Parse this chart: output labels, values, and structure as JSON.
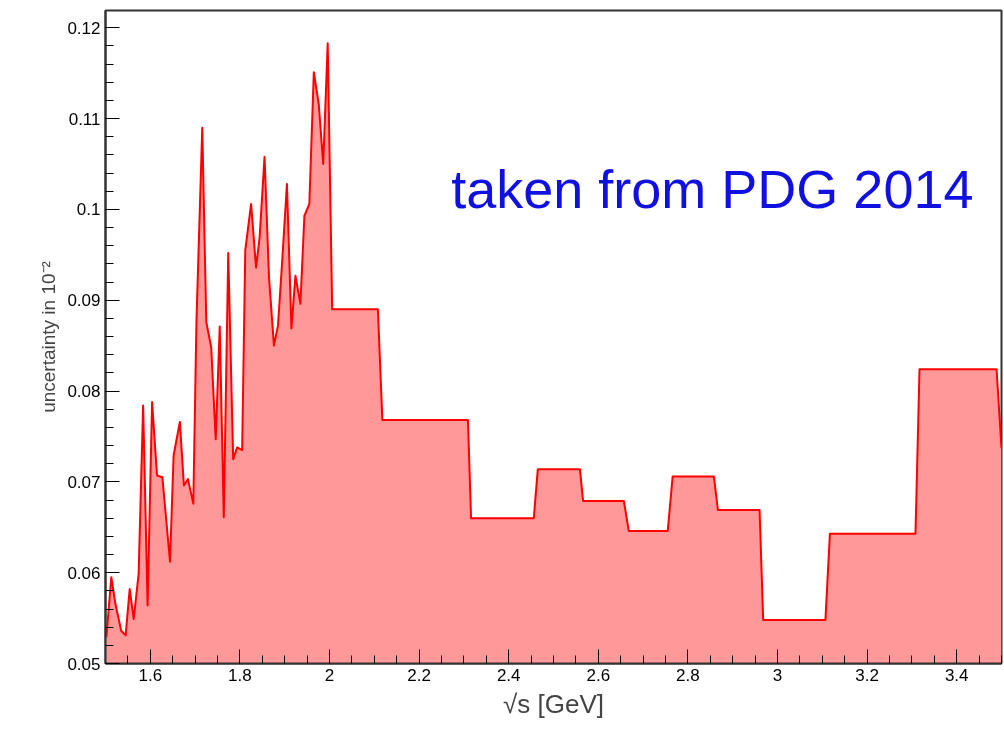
{
  "chart_data": {
    "type": "area",
    "xlabel": "√s [GeV]",
    "ylabel": "uncertainty in 10⁻²",
    "annotations": [
      "taken from PDG 2014"
    ],
    "xlim": [
      1.5,
      3.5
    ],
    "ylim": [
      0.05,
      0.1219
    ],
    "xticks": [
      1.6,
      1.8,
      2,
      2.2,
      2.4,
      2.6,
      2.8,
      3,
      3.2,
      3.4
    ],
    "yticks": [
      0.05,
      0.06,
      0.07,
      0.08,
      0.09,
      {
        "value": 0.1,
        "label": "0.1"
      },
      0.11,
      0.12
    ],
    "grid": false,
    "series": [
      {
        "color": "#ff0000",
        "x": [
          1.502,
          1.513,
          1.522,
          1.535,
          1.545,
          1.554,
          1.563,
          1.574,
          1.584,
          1.594,
          1.604,
          1.615,
          1.627,
          1.644,
          1.652,
          1.666,
          1.675,
          1.684,
          1.696,
          1.703,
          1.716,
          1.725,
          1.736,
          1.746,
          1.755,
          1.764,
          1.774,
          1.785,
          1.794,
          1.805,
          1.812,
          1.825,
          1.836,
          1.844,
          1.855,
          1.865,
          1.876,
          1.885,
          1.894,
          1.905,
          1.915,
          1.924,
          1.935,
          1.944,
          1.955,
          1.965,
          1.976,
          1.986,
          1.996,
          2.006,
          2.108,
          2.118,
          2.309,
          2.316,
          2.456,
          2.465,
          2.559,
          2.566,
          2.657,
          2.668,
          2.755,
          2.766,
          2.858,
          2.867,
          2.96,
          2.968,
          3.107,
          3.117,
          3.308,
          3.317,
          3.489,
          3.5
        ],
        "values": [
          0.0529,
          0.0595,
          0.0566,
          0.0536,
          0.0531,
          0.0582,
          0.0549,
          0.0599,
          0.0784,
          0.0564,
          0.0788,
          0.0707,
          0.0705,
          0.0612,
          0.0729,
          0.0766,
          0.0696,
          0.0703,
          0.0676,
          0.0876,
          0.109,
          0.0876,
          0.0848,
          0.0747,
          0.0871,
          0.0661,
          0.0952,
          0.0725,
          0.0738,
          0.0735,
          0.0955,
          0.1006,
          0.0936,
          0.0969,
          0.1058,
          0.0925,
          0.085,
          0.0872,
          0.094,
          0.1028,
          0.0869,
          0.0927,
          0.0896,
          0.0993,
          0.1006,
          0.1151,
          0.1116,
          0.105,
          0.1183,
          0.089,
          0.089,
          0.0768,
          0.0768,
          0.066,
          0.066,
          0.0714,
          0.0714,
          0.0679,
          0.0679,
          0.0646,
          0.0646,
          0.0706,
          0.0706,
          0.0669,
          0.0669,
          0.0548,
          0.0548,
          0.0643,
          0.0643,
          0.0824,
          0.0824,
          0.0737
        ]
      }
    ]
  }
}
